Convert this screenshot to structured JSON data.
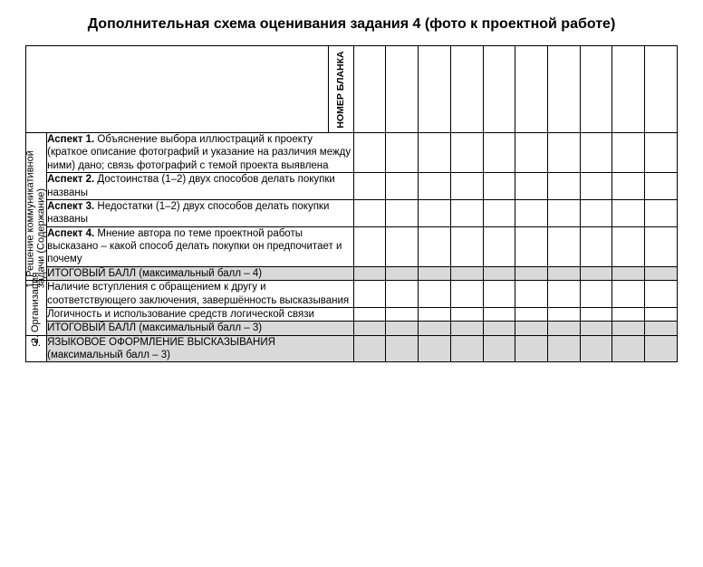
{
  "title": "Дополнительная схема оценивания задания 4 (фото к проектной работе)",
  "header_label": "НОМЕР БЛАНКА",
  "score_columns": 10,
  "sections": [
    {
      "num": "1.",
      "heading": "Решение коммуникативной\nзадачи (Содержание)",
      "rows": [
        {
          "label_bold": "Аспект 1.",
          "text": " Объяснение выбора иллюстраций к проекту (краткое описание фотографий и указание на различия между ними) дано; связь фотографий с темой проекта выявлена"
        },
        {
          "label_bold": "Аспект 2.",
          "text": " Достоинства (1–2) двух способов делать покупки названы"
        },
        {
          "label_bold": "Аспект 3.",
          "text": " Недостатки (1–2) двух способов делать покупки названы"
        },
        {
          "label_bold": "Аспект 4.",
          "text": " Мнение автора по теме проектной работы высказано – какой способ делать покупки он предпочитает и почему"
        }
      ],
      "total": "ИТОГОВЫЙ БАЛЛ (максимальный балл – 4)"
    },
    {
      "num": "2.",
      "heading": "Организация",
      "rows": [
        {
          "label_bold": "",
          "text": "Наличие вступления с обращением к другу и соответствующего заключения, завершённость высказывания"
        },
        {
          "label_bold": "",
          "text": "Логичность и использование средств логической связи"
        }
      ],
      "total": "ИТОГОВЫЙ БАЛЛ (максимальный балл – 3)"
    },
    {
      "num": "3.",
      "heading": "",
      "rows": [],
      "total": "ЯЗЫКОВОЕ ОФОРМЛЕНИЕ ВЫСКАЗЫВАНИЯ (максимальный балл – 3)"
    }
  ]
}
